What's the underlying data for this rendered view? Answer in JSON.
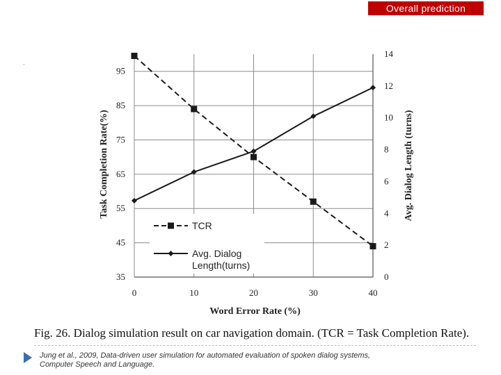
{
  "header": {
    "badge_label": "Overall prediction",
    "stray_mark": "-"
  },
  "chart_data": {
    "type": "line",
    "xlabel": "Word Error Rate (%)",
    "ylabel_left": "Task Completion Rate(%)",
    "ylabel_right": "Avg. Dialog Length (turns)",
    "x": [
      0,
      10,
      20,
      30,
      40
    ],
    "xlim": [
      0,
      40
    ],
    "x_ticks": [
      "0",
      "10",
      "20",
      "30",
      "40"
    ],
    "ylim_left": [
      35,
      100
    ],
    "y_ticks_left": [
      "35",
      "45",
      "55",
      "65",
      "75",
      "85",
      "95"
    ],
    "ylim_right": [
      0,
      14
    ],
    "y_ticks_right": [
      "0",
      "2",
      "4",
      "6",
      "8",
      "10",
      "12",
      "14"
    ],
    "grid": true,
    "legend_position": "bottom-left",
    "series": [
      {
        "name": "TCR",
        "axis": "left",
        "style": "dashed",
        "marker": "square",
        "color": "#1a1a1a",
        "values": [
          99.5,
          84,
          70,
          57,
          44
        ]
      },
      {
        "name": "Avg. Dialog Length(turns)",
        "axis": "right",
        "style": "solid",
        "marker": "diamond",
        "color": "#1a1a1a",
        "values": [
          4.8,
          6.6,
          7.9,
          10.1,
          11.9
        ]
      }
    ]
  },
  "caption": "Fig. 26.  Dialog simulation result on car navigation domain. (TCR = Task Completion Rate).",
  "reference": {
    "line1": "Jung et al., 2009, Data-driven user simulation for automated evaluation of spoken dialog systems,",
    "line2": "Computer Speech and Language."
  }
}
